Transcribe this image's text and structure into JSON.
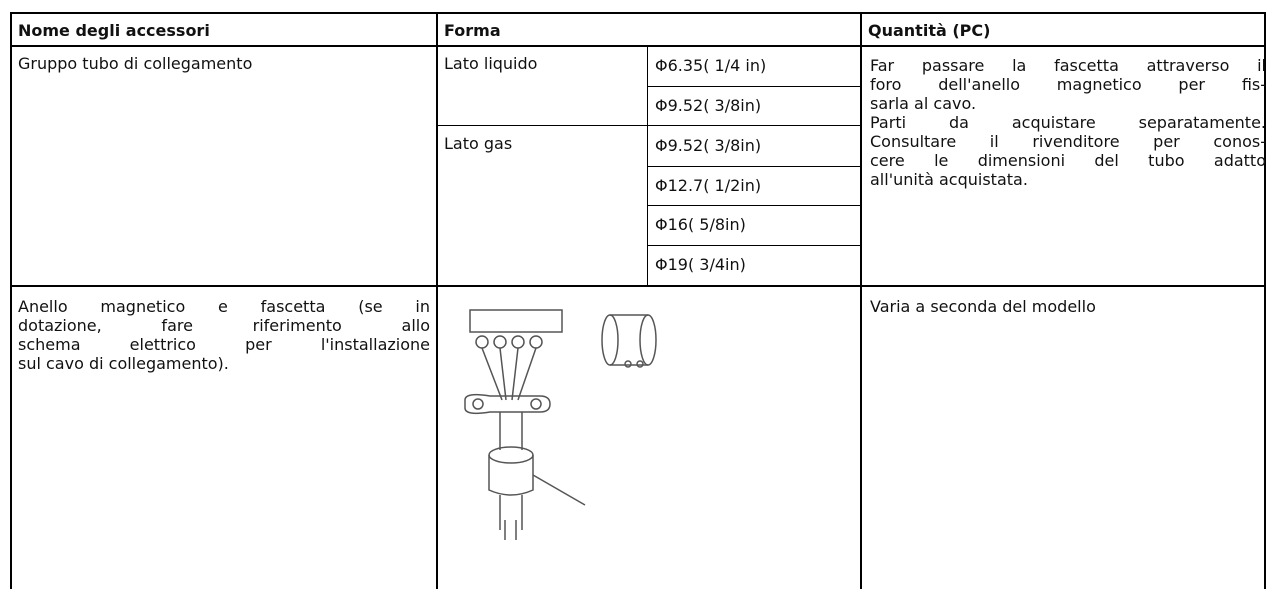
{
  "table": {
    "header": [
      "Nome degli accessori",
      "Forma",
      "Quantità (PC)"
    ],
    "rows": [
      {
        "name": [
          "Gruppo tubo di collegamento"
        ],
        "shape": [
          {
            "label": "Lato liquido",
            "sizes": [
              "Φ6.35( 1/4 in)",
              "Φ9.52( 3/8in)"
            ]
          },
          {
            "label": "Lato gas",
            "sizes": [
              "Φ9.52( 3/8in)",
              "Φ12.7( 1/2in)",
              "Φ16( 5/8in)",
              "Φ19( 3/4in)"
            ]
          }
        ],
        "quantity": [
          "Far passare la fascetta attraverso il",
          "foro dell'anello magnetico per fis-",
          "sarla al cavo.",
          "Parti da acquistare separatamente.",
          "Consultare il rivenditore per conos-",
          "cere le dimensioni del tubo adatto",
          "all'unità acquistata."
        ]
      },
      {
        "name": [
          "Anello magnetico e fascetta (se in",
          "dotazione, fare riferimento allo",
          "schema elettrico per l'installazione",
          "sul cavo di collegamento)."
        ],
        "quantity": [
          "Varia a seconda del modello"
        ]
      }
    ]
  }
}
